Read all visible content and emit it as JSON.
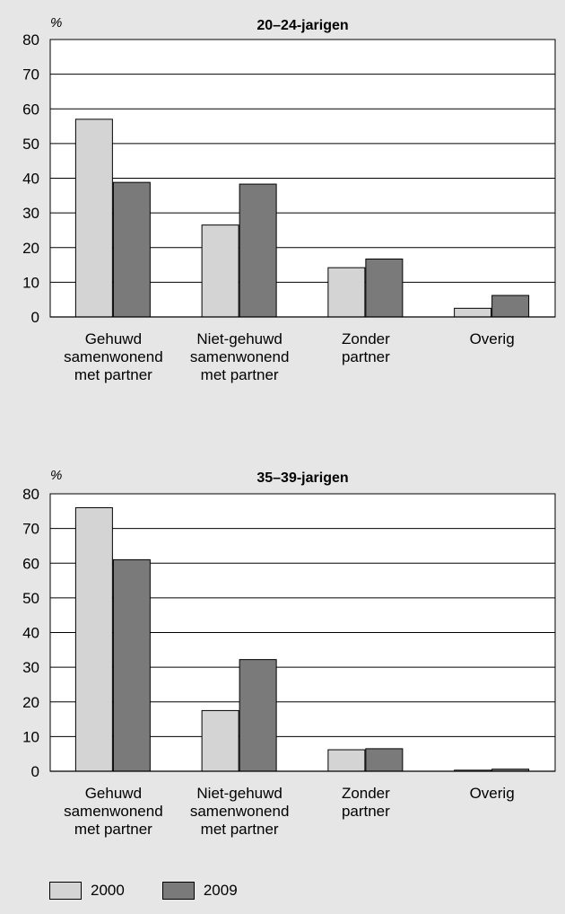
{
  "colors": {
    "background": "#e6e6e6",
    "plot_background": "#ffffff",
    "series_2000": "#d4d4d4",
    "series_2009": "#7a7a7a",
    "gridline": "#000000"
  },
  "legend": {
    "items": [
      {
        "label": "2000",
        "color": "#d4d4d4"
      },
      {
        "label": "2009",
        "color": "#7a7a7a"
      }
    ]
  },
  "chart_data": [
    {
      "type": "bar",
      "title": "20–24-jarigen",
      "ylabel": "%",
      "xlabel": "",
      "ylim": [
        0,
        80
      ],
      "yticks": [
        0,
        10,
        20,
        30,
        40,
        50,
        60,
        70,
        80
      ],
      "grid": true,
      "categories": [
        [
          "Gehuwd",
          "samenwonend",
          "met partner"
        ],
        [
          "Niet-gehuwd",
          "samenwonend",
          "met partner"
        ],
        [
          "Zonder",
          "partner"
        ],
        [
          "Overig"
        ]
      ],
      "series": [
        {
          "name": "2000",
          "values": [
            57,
            26.5,
            14.2,
            2.5
          ]
        },
        {
          "name": "2009",
          "values": [
            38.8,
            38.3,
            16.7,
            6.2
          ]
        }
      ]
    },
    {
      "type": "bar",
      "title": "35–39-jarigen",
      "ylabel": "%",
      "xlabel": "",
      "ylim": [
        0,
        80
      ],
      "yticks": [
        0,
        10,
        20,
        30,
        40,
        50,
        60,
        70,
        80
      ],
      "grid": true,
      "categories": [
        [
          "Gehuwd",
          "samenwonend",
          "met partner"
        ],
        [
          "Niet-gehuwd",
          "samenwonend",
          "met partner"
        ],
        [
          "Zonder",
          "partner"
        ],
        [
          "Overig"
        ]
      ],
      "series": [
        {
          "name": "2000",
          "values": [
            76,
            17.5,
            6.2,
            0.3
          ]
        },
        {
          "name": "2009",
          "values": [
            61,
            32.2,
            6.5,
            0.6
          ]
        }
      ]
    }
  ]
}
